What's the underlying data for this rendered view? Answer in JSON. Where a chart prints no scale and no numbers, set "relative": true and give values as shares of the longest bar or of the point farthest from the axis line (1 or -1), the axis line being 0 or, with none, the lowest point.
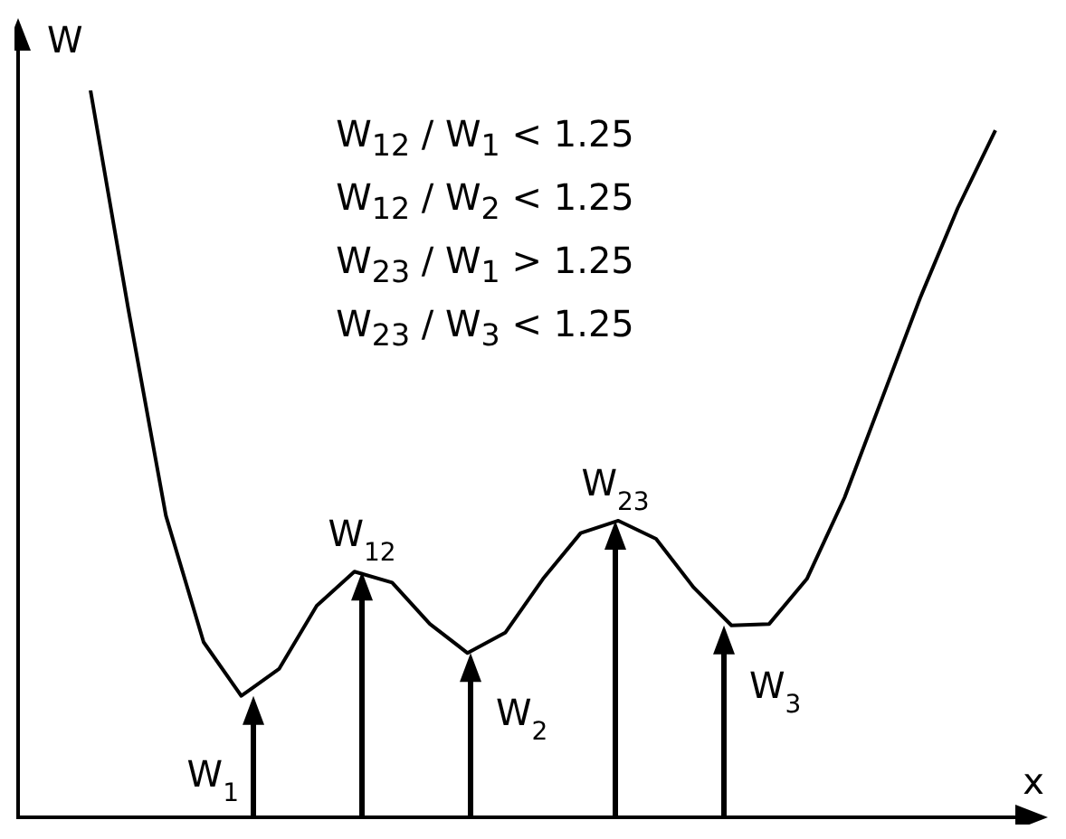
{
  "chart_data": {
    "type": "line",
    "relative": true,
    "xlabel": "x",
    "ylabel": "W",
    "categories": [
      null,
      null,
      null,
      null,
      null,
      null,
      null,
      null,
      null,
      null,
      null,
      null,
      null,
      null,
      null,
      null,
      null,
      null,
      null,
      null,
      null,
      null,
      null,
      null,
      null
    ],
    "series": [
      {
        "color": "#000000",
        "values": [
          1,
          0.7,
          0.415,
          0.241,
          0.167,
          0.204,
          0.291,
          0.338,
          0.323,
          0.266,
          0.226,
          0.254,
          0.328,
          0.391,
          0.408,
          0.383,
          0.316,
          0.264,
          0.266,
          0.328,
          0.44,
          0.577,
          0.714,
          0.838,
          0.945
        ]
      }
    ],
    "annotations": [
      "W$_{12}$ / W$_{1}$ < 1.25",
      "W$_{12}$ / W$_{2}$ < 1.25",
      "W$_{23}$ / W$_{1}$ > 1.25",
      "W$_{23}$ / W$_{3}$ < 1.25",
      "W$_{1}$",
      "W$_{12}$",
      "W$_{2}$",
      "W$_{23}$",
      "W$_{3}$"
    ]
  }
}
